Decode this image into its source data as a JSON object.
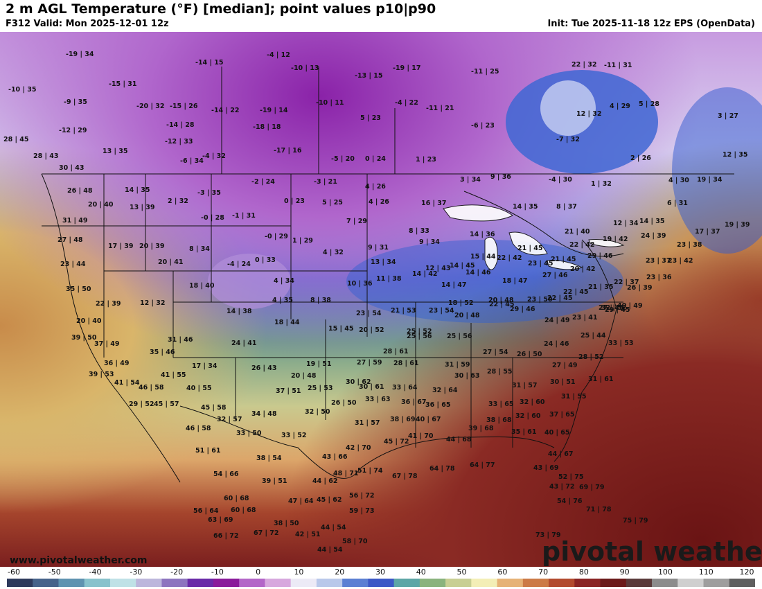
{
  "header": {
    "title": "2 m AGL Temperature (°F) [median]; point values p10|p90",
    "valid": "F312 Valid: Mon 2025-12-01 12z",
    "init": "Init: Tue 2025-11-18 12z EPS (OpenData)"
  },
  "map": {
    "credit": "www.pivotalweather.com",
    "brand": "pivotal weather",
    "point_values": [
      "-19 | 34",
      "-10 | 35",
      "-9 | 35",
      "-12 | 29",
      "28 | 45",
      "28 | 43",
      "-15 | 31",
      "-20 | 32",
      "-15 | 26",
      "-14 | 28",
      "-12 | 33",
      "13 | 35",
      "-6 | 34",
      "-4 | 32",
      "-14 | 15",
      "-14 | 22",
      "-4 | 12",
      "-19 | 14",
      "-10 | 13",
      "-18 | 18",
      "-17 | 16",
      "-13 | 15",
      "-19 | 17",
      "-10 | 11",
      "5 | 23",
      "-4 | 22",
      "-11 | 21",
      "-6 | 23",
      "-11 | 25",
      "-5 | 20",
      "0 | 24",
      "1 | 23",
      "22 | 32",
      "-11 | 31",
      "12 | 32",
      "4 | 29",
      "5 | 28",
      "3 | 27",
      "-7 | 32",
      "2 | 26",
      "12 | 35",
      "26 | 48",
      "30 | 43",
      "14 | 35",
      "20 | 40",
      "13 | 39",
      "31 | 49",
      "2 | 32",
      "-3 | 35",
      "-2 | 24",
      "-3 | 21",
      "0 | 23",
      "5 | 25",
      "4 | 26",
      "4 | 26",
      "3 | 34",
      "9 | 36",
      "-4 | 30",
      "1 | 32",
      "4 | 30",
      "19 | 34",
      "16 | 37",
      "14 | 35",
      "8 | 37",
      "6 | 31",
      "27 | 48",
      "17 | 39",
      "20 | 39",
      "-0 | 28",
      "-1 | 31",
      "7 | 29",
      "8 | 33",
      "14 | 36",
      "21 | 40",
      "12 | 34",
      "14 | 35",
      "17 | 37",
      "19 | 39",
      "24 | 39",
      "23 | 38",
      "9 | 34",
      "8 | 34",
      "-0 | 29",
      "1 | 29",
      "9 | 31",
      "22 | 42",
      "19 | 42",
      "21 | 45",
      "15 | 44",
      "22 | 42",
      "23 | 45",
      "21 | 45",
      "29 | 46",
      "23 | 37",
      "23 | 42",
      "20 | 41",
      "-4 | 24",
      "0 | 33",
      "4 | 32",
      "13 | 34",
      "12 | 43",
      "14 | 45",
      "14 | 46",
      "27 | 46",
      "20 | 42",
      "23 | 36",
      "22 | 37",
      "26 | 39",
      "23 | 44",
      "35 | 50",
      "18 | 40",
      "4 | 34",
      "10 | 36",
      "11 | 38",
      "14 | 42",
      "14 | 47",
      "18 | 47",
      "21 | 35",
      "22 | 45",
      "22 | 45",
      "22 | 39",
      "12 | 32",
      "4 | 35",
      "8 | 38",
      "18 | 52",
      "20 | 48",
      "29 | 46",
      "32 | 52",
      "40 | 49",
      "20 | 40",
      "14 | 38",
      "18 | 44",
      "23 | 54",
      "21 | 53",
      "23 | 54",
      "20 | 48",
      "22 | 45",
      "23 | 50",
      "24 | 49",
      "23 | 41",
      "27 | 45",
      "29 | 45",
      "39 | 50",
      "15 | 45",
      "20 | 52",
      "25 | 52",
      "37 | 49",
      "31 | 46",
      "25 | 56",
      "25 | 56",
      "25 | 44",
      "33 | 53",
      "35 | 46",
      "24 | 41",
      "28 | 61",
      "24 | 46",
      "27 | 54",
      "26 | 50",
      "28 | 52",
      "36 | 49",
      "17 | 34",
      "19 | 51",
      "27 | 59",
      "28 | 61",
      "31 | 59",
      "27 | 49",
      "39 | 53",
      "41 | 55",
      "26 | 43",
      "20 | 48",
      "30 | 62",
      "30 | 63",
      "28 | 55",
      "31 | 61",
      "41 | 54",
      "46 | 58",
      "40 | 55",
      "25 | 53",
      "30 | 61",
      "33 | 64",
      "32 | 64",
      "31 | 57",
      "30 | 51",
      "29 | 52",
      "45 | 57",
      "45 | 58",
      "37 | 51",
      "26 | 50",
      "33 | 63",
      "36 | 67",
      "36 | 65",
      "33 | 65",
      "32 | 60",
      "31 | 55",
      "32 | 57",
      "34 | 48",
      "32 | 50",
      "31 | 57",
      "38 | 69",
      "40 | 67",
      "38 | 68",
      "32 | 60",
      "37 | 65",
      "46 | 58",
      "33 | 50",
      "33 | 52",
      "41 | 70",
      "44 | 68",
      "39 | 68",
      "35 | 61",
      "40 | 65",
      "51 | 61",
      "42 | 70",
      "45 | 72",
      "44 | 67",
      "38 | 54",
      "43 | 66",
      "64 | 78",
      "64 | 77",
      "43 | 69",
      "54 | 66",
      "48 | 71",
      "51 | 74",
      "67 | 78",
      "52 | 75",
      "39 | 51",
      "44 | 62",
      "43 | 72",
      "69 | 79",
      "60 | 68",
      "47 | 64",
      "45 | 62",
      "56 | 72",
      "54 | 76",
      "56 | 64",
      "60 | 68",
      "59 | 73",
      "71 | 78",
      "63 | 69",
      "38 | 50",
      "75 | 79",
      "66 | 72",
      "67 | 72",
      "42 | 51",
      "44 | 54",
      "58 | 70",
      "73 | 79",
      "44 | 54"
    ]
  },
  "legend": {
    "ticks": [
      "-60",
      "-50",
      "-40",
      "-30",
      "-20",
      "-10",
      "0",
      "10",
      "20",
      "30",
      "40",
      "50",
      "60",
      "70",
      "80",
      "90",
      "100",
      "110",
      "120"
    ],
    "colors": [
      "#2e3a5c",
      "#46638a",
      "#5f93b0",
      "#88c2cc",
      "#bfe1e6",
      "#bcb6dc",
      "#8d74bf",
      "#6a2aa8",
      "#8a1b9b",
      "#b366c8",
      "#d7a8de",
      "#eceaf6",
      "#b9c8ea",
      "#5b7fd3",
      "#3c58c6",
      "#5da6a6",
      "#8ab37d",
      "#c8cf93",
      "#f3eeb6",
      "#e6b276",
      "#cc7a46",
      "#b24a2e",
      "#8a2424",
      "#6b1a1a",
      "#5a3a3a",
      "#8c8c8c",
      "#cfcfcf",
      "#9e9e9e",
      "#5f5f5f"
    ]
  }
}
